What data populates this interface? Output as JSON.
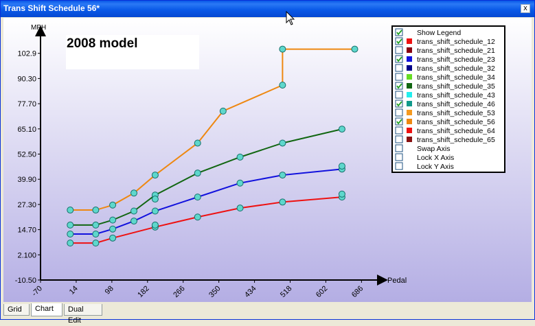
{
  "window": {
    "title": "Trans Shift Schedule 56*",
    "close_label": "x"
  },
  "annotation": {
    "text": "2008 model"
  },
  "tabs": [
    {
      "label": "Grid",
      "active": false
    },
    {
      "label": "Chart",
      "active": true
    },
    {
      "label": "Dual Edit",
      "active": false
    }
  ],
  "legend": {
    "items": [
      {
        "label": "Show Legend",
        "checked": true,
        "color": null
      },
      {
        "label": "trans_shift_schedule_12",
        "checked": true,
        "color": "#ee1111"
      },
      {
        "label": "trans_shift_schedule_21",
        "checked": false,
        "color": "#880011"
      },
      {
        "label": "trans_shift_schedule_23",
        "checked": true,
        "color": "#1111dd"
      },
      {
        "label": "trans_shift_schedule_32",
        "checked": false,
        "color": "#000088"
      },
      {
        "label": "trans_shift_schedule_34",
        "checked": false,
        "color": "#66dd22"
      },
      {
        "label": "trans_shift_schedule_35",
        "checked": true,
        "color": "#116611"
      },
      {
        "label": "trans_shift_schedule_43",
        "checked": false,
        "color": "#22eeee"
      },
      {
        "label": "trans_shift_schedule_46",
        "checked": true,
        "color": "#11998a"
      },
      {
        "label": "trans_shift_schedule_53",
        "checked": false,
        "color": "#f59a20"
      },
      {
        "label": "trans_shift_schedule_56",
        "checked": true,
        "color": "#ee8811"
      },
      {
        "label": "trans_shift_schedule_64",
        "checked": false,
        "color": "#ee1111"
      },
      {
        "label": "trans_shift_schedule_65",
        "checked": false,
        "color": "#881111"
      },
      {
        "label": "Swap Axis",
        "checked": false,
        "color": null
      },
      {
        "label": "Lock X Axis",
        "checked": false,
        "color": null
      },
      {
        "label": "Lock Y Axis",
        "checked": false,
        "color": null
      }
    ]
  },
  "chart_data": {
    "type": "line",
    "ylabel": "MPH",
    "xlabel": "Pedal",
    "xlim": [
      -70,
      742
    ],
    "ylim": [
      -10.5,
      115.5
    ],
    "x_ticks": [
      -70,
      14,
      98,
      182,
      266,
      350,
      434,
      518,
      602,
      686
    ],
    "y_ticks": [
      -10.5,
      2.1,
      14.7,
      27.3,
      39.9,
      52.5,
      65.1,
      77.7,
      90.3,
      102.9
    ],
    "y_tick_labels": [
      "-10.50",
      "2.100",
      "14.70",
      "27.30",
      "39.90",
      "52.50",
      "65.10",
      "77.70",
      "90.30",
      "102.9"
    ],
    "grid": false,
    "legend_position": "top-right",
    "series": [
      {
        "name": "trans_shift_schedule_12",
        "color": "#ee1111",
        "x": [
          0,
          60,
          100,
          200,
          300,
          400,
          500,
          640
        ],
        "y": [
          8,
          8,
          10.5,
          16,
          21,
          25.5,
          28.5,
          31
        ]
      },
      {
        "name": "trans_shift_schedule_23",
        "color": "#1111dd",
        "x": [
          0,
          60,
          100,
          150,
          200,
          300,
          400,
          500,
          640
        ],
        "y": [
          12.5,
          12.5,
          15,
          19,
          24,
          31,
          38,
          42,
          45
        ]
      },
      {
        "name": "trans_shift_schedule_35",
        "color": "#116611",
        "x": [
          0,
          60,
          100,
          150,
          200,
          300,
          400,
          500,
          640
        ],
        "y": [
          17,
          17,
          19.5,
          24,
          32,
          43,
          51,
          58,
          65
        ]
      },
      {
        "name": "trans_shift_schedule_56",
        "color": "#ee8811",
        "x": [
          0,
          60,
          100,
          150,
          200,
          300,
          360,
          500,
          500,
          670
        ],
        "y": [
          24.5,
          24.5,
          27,
          33,
          42,
          58,
          74,
          87,
          105,
          105
        ]
      }
    ],
    "extra_points": {
      "x": [
        200,
        200,
        640,
        640
      ],
      "y": [
        17,
        30,
        32.5,
        46.5
      ]
    }
  }
}
